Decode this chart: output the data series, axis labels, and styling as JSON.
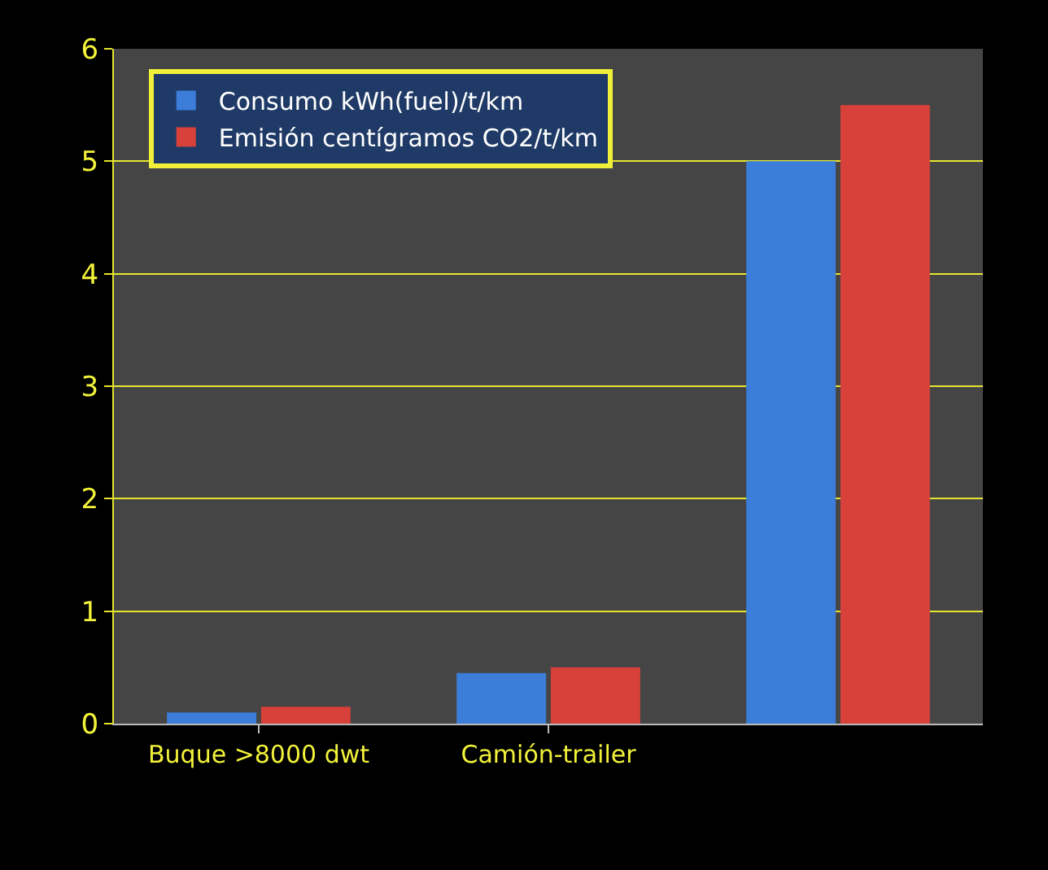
{
  "chart_data": {
    "type": "bar",
    "categories": [
      "Buque >8000 dwt",
      "Camión-trailer",
      null
    ],
    "series": [
      {
        "name": "Consumo kWh(fuel)/t/km",
        "color": "#3b7dd8",
        "values": [
          0.1,
          0.45,
          5.0
        ]
      },
      {
        "name": "Emisión centígramos CO2/t/km",
        "color": "#d8403a",
        "values": [
          0.15,
          0.5,
          5.5
        ]
      }
    ],
    "ylim": [
      0,
      6
    ],
    "yticks": [
      0,
      1,
      2,
      3,
      4,
      5,
      6
    ],
    "grid": "y",
    "legend": "top left"
  }
}
